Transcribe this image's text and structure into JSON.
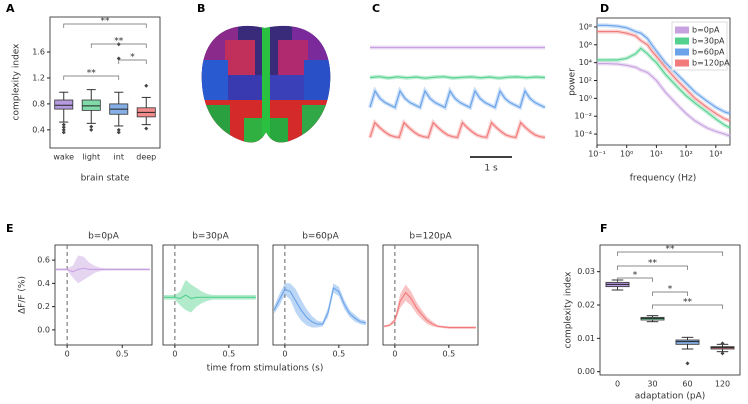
{
  "brain_panel": {
    "panel_label": "B"
  },
  "chart_data": [
    {
      "type": "box",
      "panel_label": "A",
      "x_label": "brain state",
      "y_label": "complexity index",
      "categories": [
        "wake",
        "light",
        "int",
        "deep"
      ],
      "colors": [
        "#b69adf",
        "#7fd9a9",
        "#86afe6",
        "#f28b8b"
      ],
      "stats": [
        {
          "whislo": 0.52,
          "q1": 0.72,
          "med": 0.78,
          "q3": 0.86,
          "whishi": 0.98,
          "fliers": [
            0.48,
            0.44,
            0.4,
            0.36
          ]
        },
        {
          "whislo": 0.5,
          "q1": 0.7,
          "med": 0.77,
          "q3": 0.86,
          "whishi": 1.02,
          "fliers": [
            0.45,
            0.4
          ]
        },
        {
          "whislo": 0.46,
          "q1": 0.64,
          "med": 0.72,
          "q3": 0.8,
          "whishi": 0.98,
          "fliers": [
            1.72,
            1.5,
            0.4,
            0.36
          ]
        },
        {
          "whislo": 0.48,
          "q1": 0.6,
          "med": 0.67,
          "q3": 0.74,
          "whishi": 0.9,
          "fliers": [
            1.08,
            0.42
          ]
        }
      ],
      "ylim": [
        0.12,
        2.14
      ],
      "yticks": [
        0.4,
        0.8,
        1.2,
        1.6
      ],
      "significance": [
        "**",
        "**",
        "*",
        "**"
      ]
    },
    {
      "type": "trace",
      "panel_label": "C",
      "scale_bar": "1 s",
      "series": [
        {
          "color": "#c8a2e0",
          "values": [
            0,
            0,
            0,
            0
          ]
        },
        {
          "color": "#54d18f",
          "values": [
            0,
            0.05,
            -0.03,
            0.04,
            -0.02,
            0.03,
            -0.04,
            0.02,
            0.05,
            -0.03,
            0.01,
            0.04,
            -0.02,
            0.03,
            -0.04,
            0.02,
            0.04,
            -0.01,
            0.03,
            0
          ]
        },
        {
          "color": "#6aa3ea",
          "values": [
            0,
            1,
            0.55,
            0.3,
            0.15,
            0,
            1,
            0.55,
            0.3,
            0.15,
            0,
            1,
            0.55,
            0.3,
            0.15,
            0,
            1,
            0.55,
            0.3,
            0.15,
            0,
            1,
            0.55,
            0.3,
            0.15,
            0,
            1,
            0.55,
            0.3,
            0.15,
            0,
            1,
            0.55,
            0.3,
            0.15,
            0
          ]
        },
        {
          "color": "#f27a7a",
          "values": [
            0,
            0.9,
            0.6,
            0.35,
            0.15,
            0.05,
            0,
            0.9,
            0.6,
            0.35,
            0.15,
            0.05,
            0,
            0.9,
            0.6,
            0.35,
            0.15,
            0.05,
            0,
            0.9,
            0.6,
            0.35,
            0.15,
            0.05,
            0,
            0.9,
            0.6,
            0.35,
            0.15,
            0.05,
            0,
            0.9,
            0.6,
            0.35,
            0.15,
            0.05,
            0
          ]
        }
      ]
    },
    {
      "type": "line",
      "panel_label": "D",
      "x_label": "frequency (Hz)",
      "y_label": "power",
      "log_x": true,
      "log_y": true,
      "legend": "upper right",
      "x": [
        0.1,
        0.2,
        0.5,
        1,
        2,
        3,
        5,
        7,
        10,
        20,
        50,
        100,
        200,
        500,
        1000,
        2000,
        3000
      ],
      "series": [
        {
          "name": "b=0pA",
          "color": "#c8a2e0",
          "values": [
            8000,
            8000,
            7000,
            5000,
            3000,
            1500,
            800,
            300,
            100,
            5,
            0.2,
            0.02,
            0.003,
            0.0005,
            0.0002,
            0.0001,
            6e-05
          ]
        },
        {
          "name": "b=30pA",
          "color": "#54d18f",
          "values": [
            20000,
            20000,
            20000,
            30000,
            100000,
            400000,
            100000,
            30000,
            10000,
            500,
            20,
            2,
            0.3,
            0.03,
            0.005,
            0.001,
            0.0005
          ]
        },
        {
          "name": "b=60pA",
          "color": "#6aa3ea",
          "values": [
            150000000,
            150000000,
            120000000,
            80000000,
            30000000,
            20000000,
            5000000,
            1000000,
            200000,
            10000,
            500,
            50,
            5,
            0.5,
            0.1,
            0.03,
            0.02
          ]
        },
        {
          "name": "b=120pA",
          "color": "#f27a7a",
          "values": [
            30000000,
            30000000,
            30000000,
            20000000,
            10000000,
            3000000,
            1000000,
            200000,
            50000,
            3000,
            100,
            10,
            1,
            0.1,
            0.02,
            0.005,
            0.003
          ]
        }
      ],
      "xlim": [
        0.1,
        3000
      ],
      "ylim": [
        6e-06,
        1000000000
      ],
      "xticks": [
        {
          "value": 0.1,
          "label": "10⁻¹"
        },
        {
          "value": 1,
          "label": "10⁰"
        },
        {
          "value": 10,
          "label": "10¹"
        },
        {
          "value": 100,
          "label": "10²"
        },
        {
          "value": 1000,
          "label": "10³"
        }
      ],
      "yticks": [
        {
          "value": 0.0001,
          "label": "10⁻⁴"
        },
        {
          "value": 0.01,
          "label": "10⁻²"
        },
        {
          "value": 1,
          "label": "10⁰"
        },
        {
          "value": 100,
          "label": "10²"
        },
        {
          "value": 10000,
          "label": "10⁴"
        },
        {
          "value": 1000000,
          "label": "10⁶"
        },
        {
          "value": 100000000,
          "label": "10⁸"
        }
      ]
    },
    {
      "type": "line",
      "panel_label": "E",
      "title": "b=0pA",
      "x_label": "time from stimulations (s)",
      "y_label": "ΔF/F (%)",
      "stimulus_time": 0,
      "x": [
        -0.1,
        -0.05,
        0,
        0.05,
        0.1,
        0.15,
        0.2,
        0.25,
        0.3,
        0.35,
        0.4,
        0.45,
        0.5,
        0.55,
        0.6,
        0.65,
        0.7,
        0.75
      ],
      "series": [
        {
          "color": "#c8a2e0",
          "values": [
            0.52,
            0.52,
            0.52,
            0.5,
            0.52,
            0.53,
            0.52,
            0.52,
            0.52,
            0.52,
            0.52,
            0.52,
            0.52,
            0.52,
            0.52,
            0.52,
            0.52,
            0.52
          ],
          "err": [
            0.01,
            0.01,
            0.01,
            0.05,
            0.12,
            0.1,
            0.06,
            0.03,
            0.015,
            0.01,
            0.01,
            0.01,
            0.01,
            0.01,
            0.01,
            0.01,
            0.01,
            0.01
          ]
        }
      ],
      "xlim": [
        -0.11,
        0.77
      ],
      "ylim": [
        -0.13,
        0.73
      ],
      "xticks": [
        0,
        0.5
      ],
      "yticks": [
        {
          "value": 0,
          "label": "0.0"
        },
        0.2,
        0.4,
        0.6
      ]
    },
    {
      "type": "line",
      "title": "b=30pA",
      "stimulus_time": 0,
      "x": [
        -0.1,
        -0.05,
        0,
        0.05,
        0.1,
        0.15,
        0.2,
        0.25,
        0.3,
        0.35,
        0.4,
        0.45,
        0.5,
        0.55,
        0.6,
        0.65,
        0.7,
        0.75
      ],
      "series": [
        {
          "color": "#54d18f",
          "values": [
            0.28,
            0.28,
            0.28,
            0.27,
            0.3,
            0.27,
            0.28,
            0.28,
            0.28,
            0.28,
            0.28,
            0.28,
            0.28,
            0.28,
            0.28,
            0.28,
            0.28,
            0.28
          ],
          "err": [
            0.02,
            0.02,
            0.02,
            0.06,
            0.13,
            0.12,
            0.08,
            0.05,
            0.03,
            0.02,
            0.02,
            0.02,
            0.02,
            0.02,
            0.02,
            0.02,
            0.02,
            0.02
          ]
        }
      ],
      "xlim": [
        -0.11,
        0.77
      ],
      "ylim": [
        -0.13,
        0.73
      ],
      "xticks": [
        0,
        0.5
      ]
    },
    {
      "type": "line",
      "title": "b=60pA",
      "stimulus_time": 0,
      "x": [
        -0.1,
        -0.05,
        0,
        0.05,
        0.1,
        0.15,
        0.2,
        0.25,
        0.3,
        0.35,
        0.4,
        0.45,
        0.5,
        0.55,
        0.6,
        0.65,
        0.7,
        0.75
      ],
      "series": [
        {
          "color": "#6aa3ea",
          "values": [
            0.17,
            0.26,
            0.35,
            0.33,
            0.25,
            0.17,
            0.11,
            0.07,
            0.05,
            0.05,
            0.15,
            0.36,
            0.33,
            0.22,
            0.14,
            0.1,
            0.07,
            0.06
          ],
          "err": [
            0.03,
            0.05,
            0.05,
            0.07,
            0.1,
            0.09,
            0.07,
            0.05,
            0.03,
            0.02,
            0.04,
            0.04,
            0.04,
            0.04,
            0.03,
            0.03,
            0.02,
            0.02
          ]
        }
      ],
      "xlim": [
        -0.11,
        0.77
      ],
      "ylim": [
        -0.13,
        0.73
      ],
      "xticks": [
        0,
        0.5
      ]
    },
    {
      "type": "line",
      "title": "b=120pA",
      "stimulus_time": 0,
      "x": [
        -0.1,
        -0.05,
        0,
        0.05,
        0.1,
        0.15,
        0.2,
        0.25,
        0.3,
        0.35,
        0.4,
        0.45,
        0.5,
        0.55,
        0.6,
        0.65,
        0.7,
        0.75
      ],
      "series": [
        {
          "color": "#f27a7a",
          "values": [
            0.03,
            0.04,
            0.08,
            0.25,
            0.32,
            0.27,
            0.19,
            0.13,
            0.08,
            0.05,
            0.03,
            0.025,
            0.02,
            0.02,
            0.02,
            0.02,
            0.02,
            0.02
          ],
          "err": [
            0.01,
            0.01,
            0.02,
            0.06,
            0.07,
            0.06,
            0.05,
            0.04,
            0.03,
            0.02,
            0.01,
            0.01,
            0.01,
            0.01,
            0.01,
            0.01,
            0.01,
            0.01
          ]
        }
      ],
      "xlim": [
        -0.11,
        0.77
      ],
      "ylim": [
        -0.13,
        0.73
      ],
      "xticks": [
        0,
        0.5
      ]
    },
    {
      "type": "box",
      "panel_label": "F",
      "x_label": "adaptation (pA)",
      "y_label": "complexity index",
      "categories": [
        "0",
        "30",
        "60",
        "120"
      ],
      "colors": [
        "#b69adf",
        "#7fd9a9",
        "#86afe6",
        "#f28b8b"
      ],
      "stats": [
        {
          "whislo": 0.0245,
          "q1": 0.0255,
          "med": 0.0262,
          "q3": 0.0268,
          "whishi": 0.0275,
          "fliers": []
        },
        {
          "whislo": 0.015,
          "q1": 0.0155,
          "med": 0.016,
          "q3": 0.0163,
          "whishi": 0.0168,
          "fliers": []
        },
        {
          "whislo": 0.0068,
          "q1": 0.0082,
          "med": 0.009,
          "q3": 0.0095,
          "whishi": 0.0103,
          "fliers": [
            0.0025
          ]
        },
        {
          "whislo": 0.006,
          "q1": 0.0068,
          "med": 0.0072,
          "q3": 0.0075,
          "whishi": 0.0082,
          "fliers": [
            0.0085,
            0.0055
          ]
        }
      ],
      "ylim": [
        -0.001,
        0.038
      ],
      "yticks": [
        {
          "value": 0,
          "label": "0.00"
        },
        0.01,
        0.02,
        0.03
      ],
      "significance": [
        "**",
        "**",
        "*",
        "*",
        "**"
      ]
    }
  ]
}
